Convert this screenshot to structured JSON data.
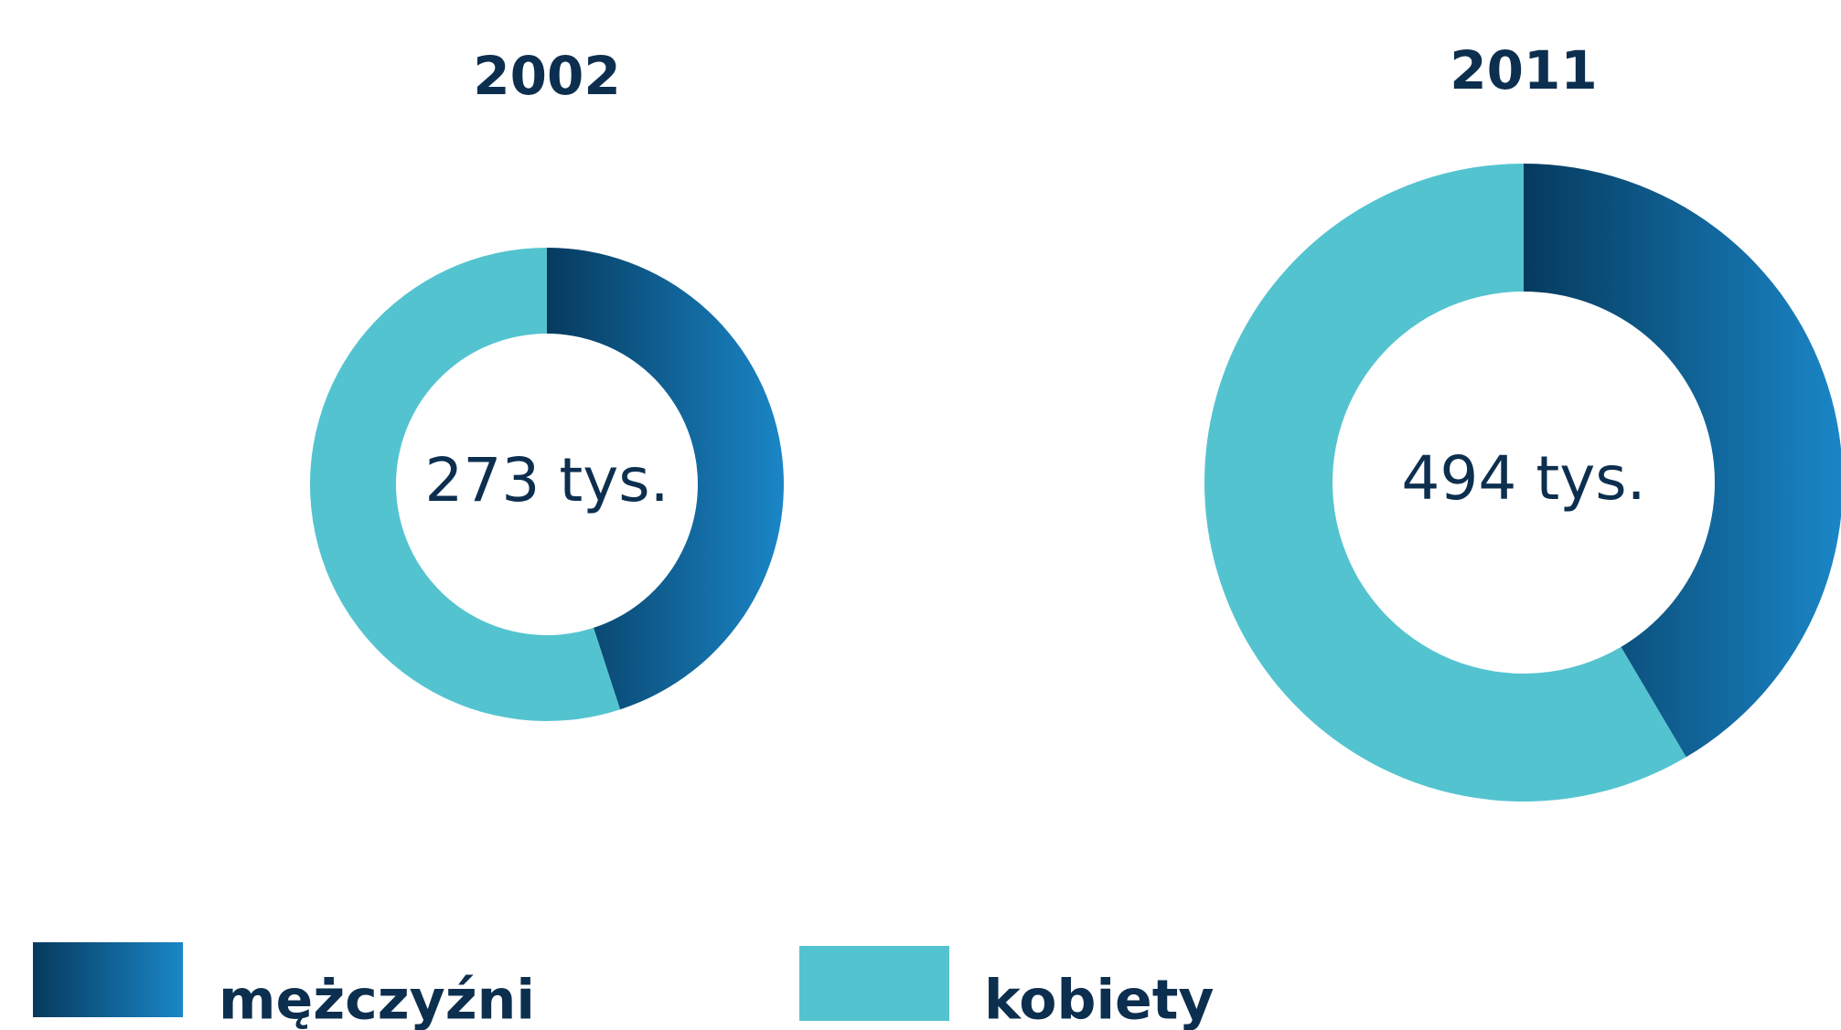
{
  "chart_data": [
    {
      "type": "pie",
      "title": "2002",
      "center_label": "273 tys.",
      "categories": [
        "mężczyźni",
        "kobiety"
      ],
      "values": [
        45,
        55
      ],
      "colors": [
        [
          "#063a5e",
          "#1a86c7"
        ],
        "#54c3d0"
      ]
    },
    {
      "type": "pie",
      "title": "2011",
      "center_label": "494 tys.",
      "categories": [
        "mężczyźni",
        "kobiety"
      ],
      "values": [
        41.5,
        58.5
      ],
      "colors": [
        [
          "#063a5e",
          "#1a86c7"
        ],
        "#54c3d0"
      ]
    }
  ]
}
